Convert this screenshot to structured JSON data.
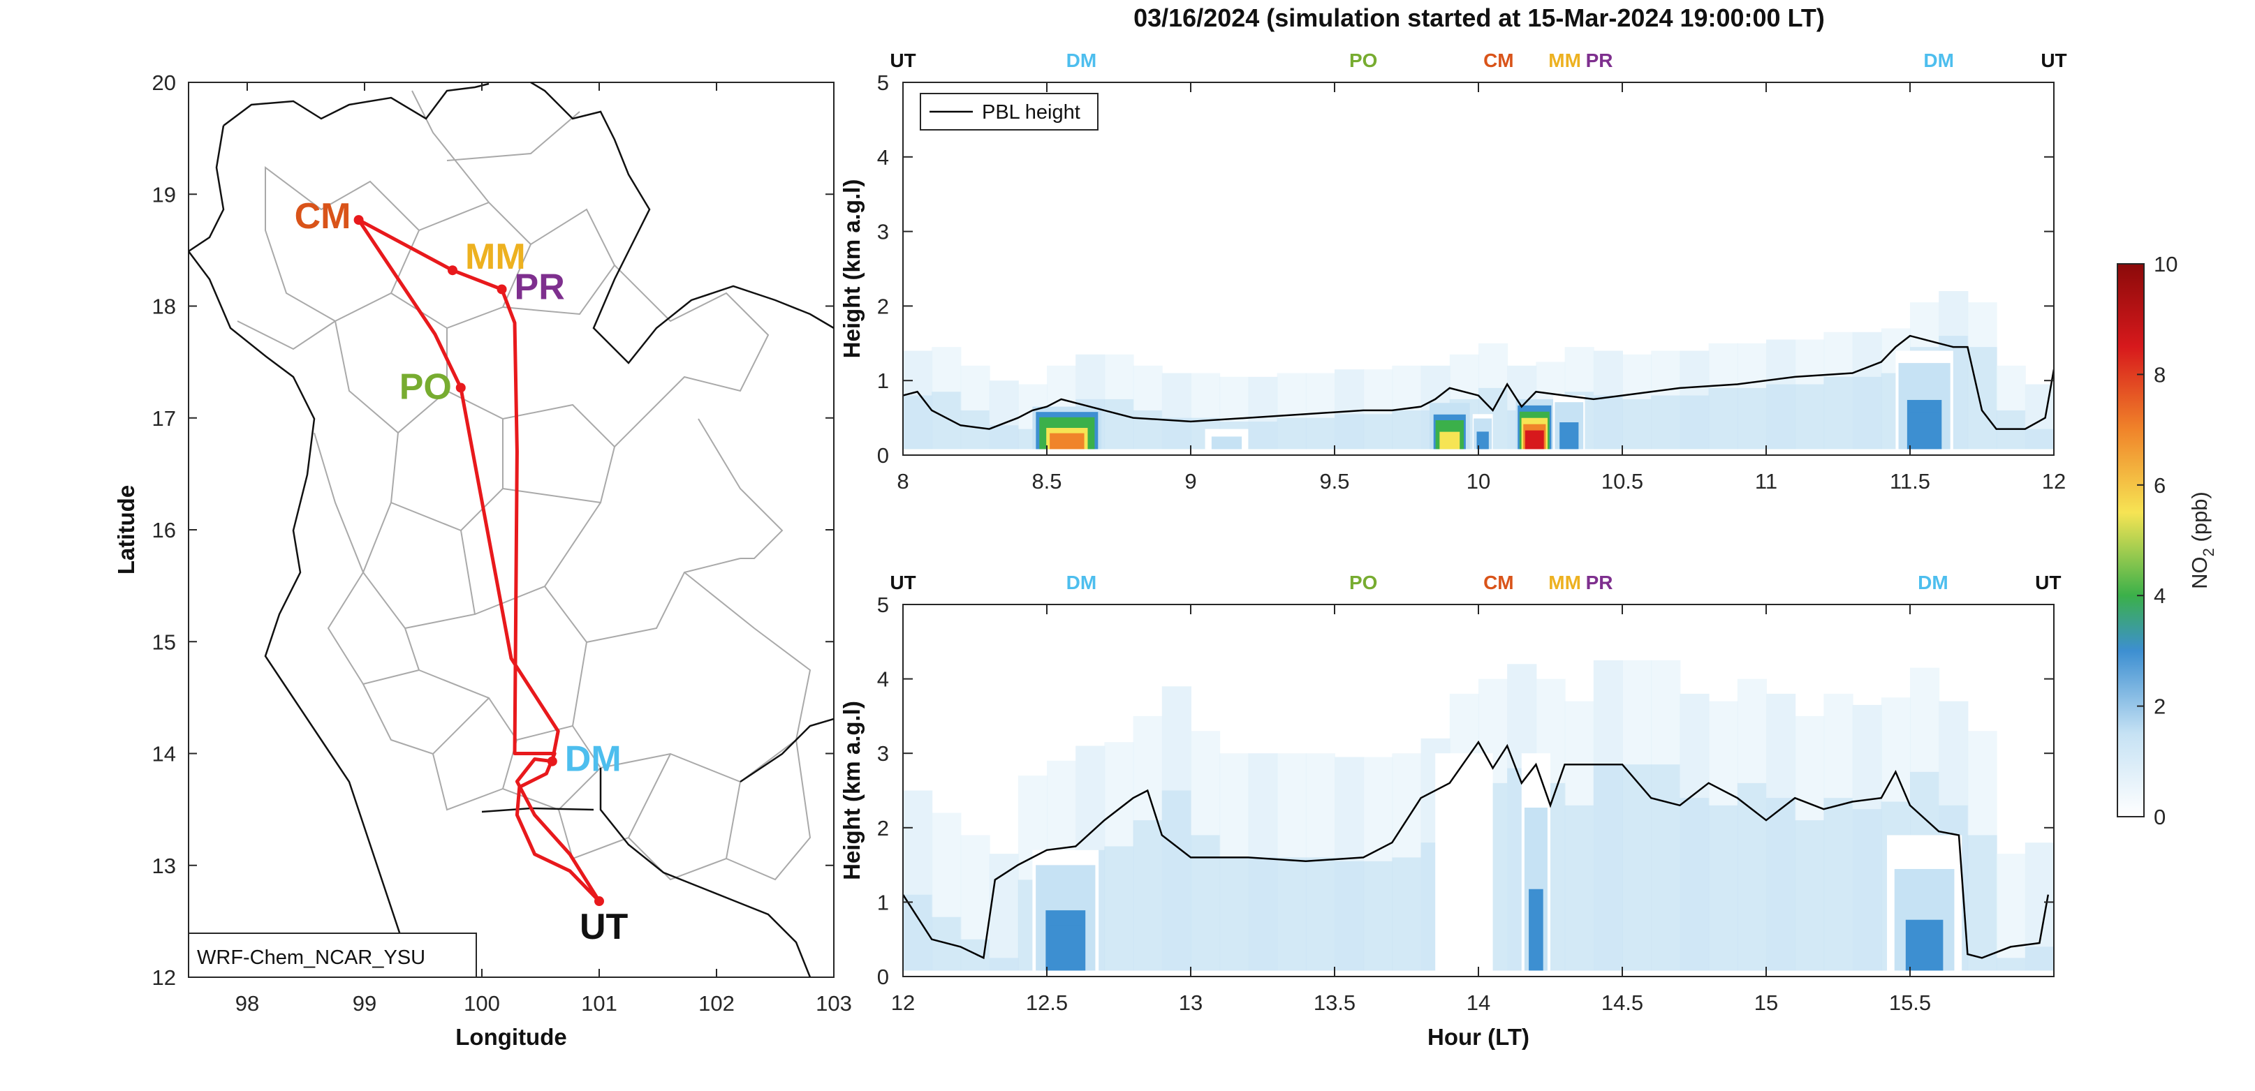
{
  "chart_data": {
    "title": "03/16/2024 (simulation started at 15-Mar-2024 19:00:00 LT)",
    "map": {
      "type": "route-map",
      "xlabel": "Longitude",
      "ylabel": "Latitude",
      "xlim": [
        97.5,
        103
      ],
      "ylim": [
        12,
        20
      ],
      "xticks": [
        "98",
        "99",
        "100",
        "101",
        "102",
        "103"
      ],
      "yticks": [
        "12",
        "13",
        "14",
        "15",
        "16",
        "17",
        "18",
        "19",
        "20"
      ],
      "model_label": "WRF-Chem_NCAR_YSU",
      "route_color": "#e8191c",
      "sites": [
        {
          "name": "CM",
          "lon": 98.95,
          "lat": 18.77,
          "color": "#d95319"
        },
        {
          "name": "MM",
          "lon": 99.75,
          "lat": 18.32,
          "color": "#edb120"
        },
        {
          "name": "PR",
          "lon": 100.17,
          "lat": 18.15,
          "color": "#7e2f8e"
        },
        {
          "name": "PO",
          "lon": 99.82,
          "lat": 17.27,
          "color": "#77ac30"
        },
        {
          "name": "DM",
          "lon": 100.6,
          "lat": 13.93,
          "color": "#4dbeee"
        },
        {
          "name": "UT",
          "lon": 101.0,
          "lat": 12.68,
          "color": "#111111"
        }
      ],
      "route": [
        [
          101.0,
          12.68
        ],
        [
          100.75,
          13.1
        ],
        [
          100.45,
          13.45
        ],
        [
          100.3,
          13.75
        ],
        [
          100.45,
          13.95
        ],
        [
          100.6,
          13.93
        ],
        [
          100.65,
          14.2
        ],
        [
          100.25,
          14.85
        ],
        [
          99.82,
          17.27
        ],
        [
          99.6,
          17.75
        ],
        [
          98.95,
          18.77
        ],
        [
          99.75,
          18.32
        ],
        [
          100.17,
          18.15
        ],
        [
          100.28,
          17.85
        ],
        [
          100.3,
          16.7
        ],
        [
          100.28,
          14.0
        ],
        [
          100.62,
          14.0
        ],
        [
          100.55,
          13.82
        ],
        [
          100.32,
          13.7
        ],
        [
          100.3,
          13.45
        ],
        [
          100.45,
          13.1
        ],
        [
          100.75,
          12.95
        ],
        [
          101.0,
          12.68
        ]
      ]
    },
    "panels": [
      {
        "type": "heatmap",
        "xlim": [
          8,
          12
        ],
        "ylim": [
          0,
          5
        ],
        "xticks": [
          "8",
          "8.5",
          "9",
          "9.5",
          "10",
          "10.5",
          "11",
          "11.5",
          "12"
        ],
        "yticks": [
          "0",
          "1",
          "2",
          "3",
          "4",
          "5"
        ],
        "xlabel": "",
        "ylabel": "Height (km a.g.l)",
        "legend": "PBL height",
        "site_markers": [
          {
            "name": "UT",
            "x": 8.0,
            "color": "#111111"
          },
          {
            "name": "DM",
            "x": 8.62,
            "color": "#4dbeee"
          },
          {
            "name": "PO",
            "x": 9.6,
            "color": "#77ac30"
          },
          {
            "name": "CM",
            "x": 10.07,
            "color": "#d95319"
          },
          {
            "name": "MM",
            "x": 10.3,
            "color": "#edb120"
          },
          {
            "name": "PR",
            "x": 10.42,
            "color": "#7e2f8e"
          },
          {
            "name": "DM",
            "x": 11.6,
            "color": "#4dbeee"
          },
          {
            "name": "UT",
            "x": 12.0,
            "color": "#111111"
          }
        ],
        "pbl_x": [
          8.0,
          8.05,
          8.1,
          8.2,
          8.3,
          8.4,
          8.45,
          8.5,
          8.55,
          8.7,
          8.8,
          9.0,
          9.2,
          9.4,
          9.6,
          9.7,
          9.8,
          9.85,
          9.9,
          10.0,
          10.05,
          10.1,
          10.15,
          10.2,
          10.3,
          10.4,
          10.5,
          10.7,
          10.9,
          11.1,
          11.3,
          11.4,
          11.45,
          11.5,
          11.6,
          11.65,
          11.7,
          11.75,
          11.8,
          11.9,
          11.97,
          12.0
        ],
        "pbl_y": [
          0.8,
          0.85,
          0.6,
          0.4,
          0.35,
          0.5,
          0.6,
          0.65,
          0.75,
          0.6,
          0.5,
          0.45,
          0.5,
          0.55,
          0.6,
          0.6,
          0.65,
          0.75,
          0.9,
          0.8,
          0.6,
          0.95,
          0.65,
          0.85,
          0.8,
          0.75,
          0.8,
          0.9,
          0.95,
          1.05,
          1.1,
          1.25,
          1.45,
          1.6,
          1.5,
          1.45,
          1.45,
          0.6,
          0.35,
          0.35,
          0.5,
          1.15
        ],
        "no2_blobs": [
          {
            "x0": 8.45,
            "x1": 8.69,
            "top": 0.65,
            "peak": 8.0
          },
          {
            "x0": 9.05,
            "x1": 9.2,
            "top": 0.35,
            "peak": 2.5
          },
          {
            "x0": 9.83,
            "x1": 9.97,
            "top": 0.7,
            "peak": 6.5
          },
          {
            "x0": 9.98,
            "x1": 10.05,
            "top": 0.55,
            "peak": 4.5
          },
          {
            "x0": 10.13,
            "x1": 10.26,
            "top": 0.75,
            "peak": 10.0
          },
          {
            "x0": 10.26,
            "x1": 10.37,
            "top": 0.8,
            "peak": 4.0
          },
          {
            "x0": 11.45,
            "x1": 11.65,
            "top": 1.4,
            "peak": 4.0
          }
        ]
      },
      {
        "type": "heatmap",
        "xlim": [
          12,
          16
        ],
        "ylim": [
          0,
          5
        ],
        "xticks": [
          "12",
          "12.5",
          "13",
          "13.5",
          "14",
          "14.5",
          "15",
          "15.5"
        ],
        "yticks": [
          "0",
          "1",
          "2",
          "3",
          "4",
          "5"
        ],
        "xlabel": "Hour (LT)",
        "ylabel": "Height (km a.g.l)",
        "site_markers": [
          {
            "name": "UT",
            "x": 12.0,
            "color": "#111111"
          },
          {
            "name": "DM",
            "x": 12.62,
            "color": "#4dbeee"
          },
          {
            "name": "PO",
            "x": 13.6,
            "color": "#77ac30"
          },
          {
            "name": "CM",
            "x": 14.07,
            "color": "#d95319"
          },
          {
            "name": "MM",
            "x": 14.3,
            "color": "#edb120"
          },
          {
            "name": "PR",
            "x": 14.42,
            "color": "#7e2f8e"
          },
          {
            "name": "DM",
            "x": 15.58,
            "color": "#4dbeee"
          },
          {
            "name": "UT",
            "x": 15.98,
            "color": "#111111"
          }
        ],
        "pbl_x": [
          12.0,
          12.05,
          12.1,
          12.2,
          12.28,
          12.32,
          12.4,
          12.5,
          12.6,
          12.7,
          12.8,
          12.85,
          12.9,
          13.0,
          13.2,
          13.4,
          13.6,
          13.7,
          13.8,
          13.9,
          14.0,
          14.05,
          14.1,
          14.15,
          14.2,
          14.25,
          14.3,
          14.5,
          14.6,
          14.7,
          14.8,
          14.9,
          15.0,
          15.1,
          15.2,
          15.3,
          15.4,
          15.45,
          15.5,
          15.6,
          15.67,
          15.7,
          15.75,
          15.85,
          15.95,
          15.98
        ],
        "pbl_y": [
          1.1,
          0.8,
          0.5,
          0.4,
          0.25,
          1.3,
          1.5,
          1.7,
          1.75,
          2.1,
          2.4,
          2.5,
          1.9,
          1.6,
          1.6,
          1.55,
          1.6,
          1.8,
          2.4,
          2.6,
          3.15,
          2.8,
          3.1,
          2.6,
          2.85,
          2.3,
          2.85,
          2.85,
          2.4,
          2.3,
          2.6,
          2.4,
          2.1,
          2.4,
          2.25,
          2.35,
          2.4,
          2.75,
          2.3,
          1.95,
          1.9,
          0.3,
          0.25,
          0.4,
          0.45,
          1.1
        ],
        "no2_blobs": [
          {
            "x0": 12.45,
            "x1": 12.68,
            "top": 1.7,
            "peak": 4.0
          },
          {
            "x0": 13.85,
            "x1": 14.05,
            "top": 3.0,
            "peak": 1.5
          },
          {
            "x0": 14.15,
            "x1": 14.25,
            "top": 3.0,
            "peak": 3.5
          },
          {
            "x0": 15.42,
            "x1": 15.68,
            "top": 1.9,
            "peak": 3.8
          }
        ]
      }
    ],
    "colorbar": {
      "label": "NO2 (ppb)",
      "range": [
        0,
        10
      ],
      "ticks": [
        "0",
        "2",
        "4",
        "6",
        "8",
        "10"
      ],
      "colors": [
        "#ffffff",
        "#c6e2f4",
        "#3d8fd1",
        "#3bb04a",
        "#f6e454",
        "#f0842a",
        "#d7191c",
        "#8b0a0a"
      ]
    }
  }
}
